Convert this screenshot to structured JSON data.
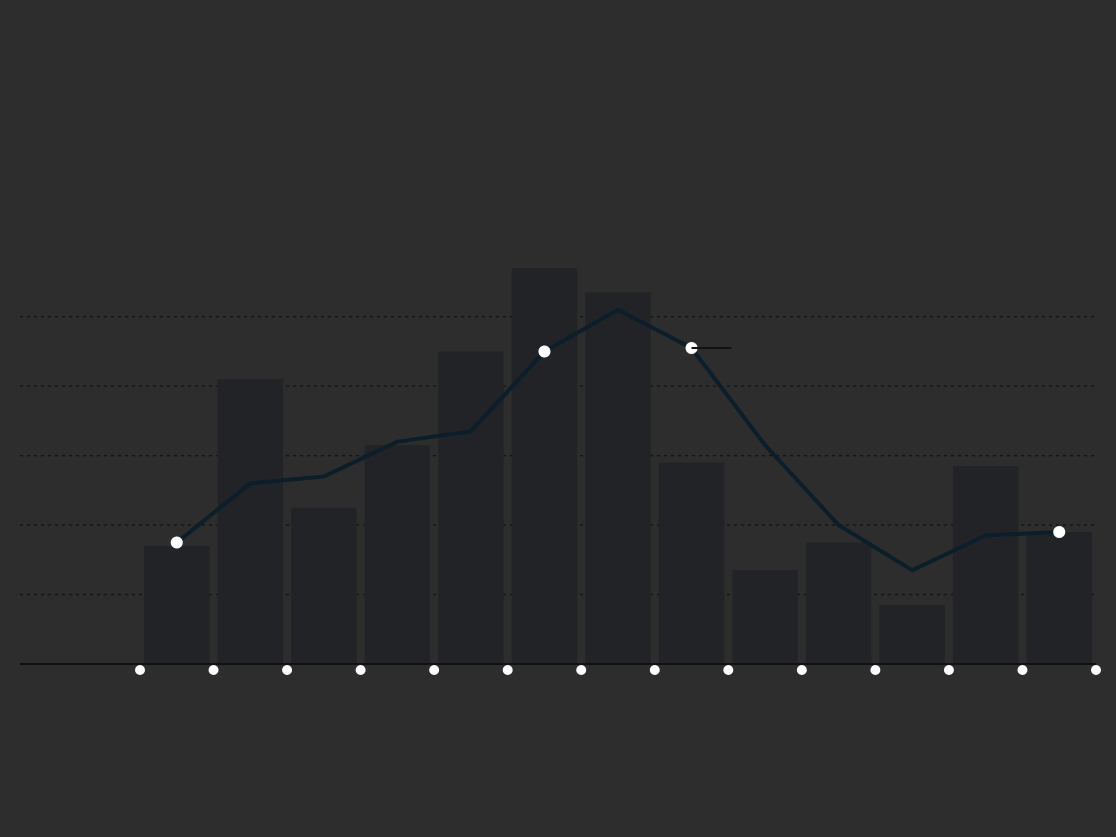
{
  "header": {
    "title": "",
    "subtitle": ""
  },
  "footer": {
    "source": "",
    "credit": ""
  },
  "colors": {
    "background": "#2d2d2d",
    "bar": "#222326",
    "line": "#0b1e29",
    "grid": "#151515",
    "text": "#ffffff"
  },
  "chart_data": {
    "type": "bar",
    "categories": [
      "",
      "",
      "",
      "",
      "",
      "",
      "",
      "",
      "",
      "",
      "",
      "",
      ""
    ],
    "ylim": [
      0,
      55
    ],
    "series": [
      {
        "kind": "bar",
        "values": [
          17,
          41,
          22.5,
          31.5,
          45,
          57,
          53.5,
          29,
          13.5,
          17.5,
          8.5,
          28.5,
          19
        ]
      },
      {
        "kind": "line",
        "values": [
          17.5,
          26,
          27,
          32,
          33.5,
          45,
          51,
          45.5,
          31.5,
          20,
          13.5,
          18.5,
          19
        ]
      }
    ],
    "annotations": [
      {
        "text": "",
        "index": 7
      },
      {
        "text": "",
        "index": 5
      }
    ],
    "xlabel": "",
    "ylabel": "",
    "grid": true
  }
}
